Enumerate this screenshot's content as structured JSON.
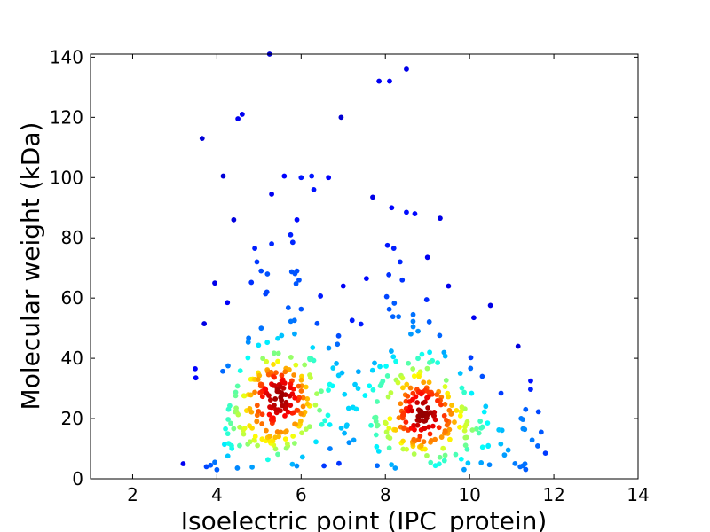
{
  "chart_data": {
    "type": "scatter",
    "xlabel": "Isoelectric point (IPC_protein)",
    "ylabel": "Molecular weight (kDa)",
    "xlim": [
      1,
      14
    ],
    "ylim": [
      0,
      141
    ],
    "x_ticks": [
      2,
      4,
      6,
      8,
      10,
      12,
      14
    ],
    "y_ticks": [
      0,
      20,
      40,
      60,
      80,
      100,
      120,
      140
    ],
    "grid": false,
    "color_encoding": "point density (jet colormap: blue = low, red = high)",
    "points": [
      {
        "x": 3.2,
        "y": 5
      },
      {
        "x": 3.5,
        "y": 33.5
      },
      {
        "x": 3.65,
        "y": 113
      },
      {
        "x": 3.7,
        "y": 51.5
      },
      {
        "x": 3.75,
        "y": 4
      },
      {
        "x": 3.85,
        "y": 4.5
      },
      {
        "x": 3.95,
        "y": 5.5
      },
      {
        "x": 3.95,
        "y": 65
      },
      {
        "x": 4.0,
        "y": 3
      },
      {
        "x": 4.15,
        "y": 100.5
      },
      {
        "x": 4.25,
        "y": 58.5
      },
      {
        "x": 4.4,
        "y": 86
      },
      {
        "x": 4.5,
        "y": 119.5
      },
      {
        "x": 4.6,
        "y": 121
      },
      {
        "x": 4.9,
        "y": 76.5
      },
      {
        "x": 4.95,
        "y": 72
      },
      {
        "x": 5.05,
        "y": 69
      },
      {
        "x": 5.2,
        "y": 68
      },
      {
        "x": 5.3,
        "y": 78
      },
      {
        "x": 5.3,
        "y": 94.5
      },
      {
        "x": 5.25,
        "y": 141
      },
      {
        "x": 5.6,
        "y": 100.5
      },
      {
        "x": 5.75,
        "y": 81
      },
      {
        "x": 5.8,
        "y": 78.5
      },
      {
        "x": 5.9,
        "y": 86
      },
      {
        "x": 5.9,
        "y": 69
      },
      {
        "x": 5.95,
        "y": 66
      },
      {
        "x": 6.0,
        "y": 100
      },
      {
        "x": 6.25,
        "y": 100.5
      },
      {
        "x": 6.3,
        "y": 96
      },
      {
        "x": 6.65,
        "y": 100
      },
      {
        "x": 6.95,
        "y": 120
      },
      {
        "x": 7.0,
        "y": 64
      },
      {
        "x": 7.55,
        "y": 66.5
      },
      {
        "x": 7.7,
        "y": 93.5
      },
      {
        "x": 7.85,
        "y": 132
      },
      {
        "x": 8.05,
        "y": 77.5
      },
      {
        "x": 8.1,
        "y": 132
      },
      {
        "x": 8.15,
        "y": 90
      },
      {
        "x": 8.2,
        "y": 76.5
      },
      {
        "x": 8.35,
        "y": 72
      },
      {
        "x": 8.4,
        "y": 66
      },
      {
        "x": 8.5,
        "y": 88.5
      },
      {
        "x": 8.5,
        "y": 136
      },
      {
        "x": 8.7,
        "y": 88
      },
      {
        "x": 9.0,
        "y": 73.5
      },
      {
        "x": 9.3,
        "y": 86.5
      },
      {
        "x": 9.5,
        "y": 64
      },
      {
        "x": 10.1,
        "y": 53.5
      },
      {
        "x": 10.3,
        "y": 34
      },
      {
        "x": 11.15,
        "y": 44
      },
      {
        "x": 11.45,
        "y": 32.5
      },
      {
        "x": 11.8,
        "y": 8.5
      },
      {
        "x": 11.7,
        "y": 15.5
      },
      {
        "x": 11.2,
        "y": 4
      }
    ]
  }
}
